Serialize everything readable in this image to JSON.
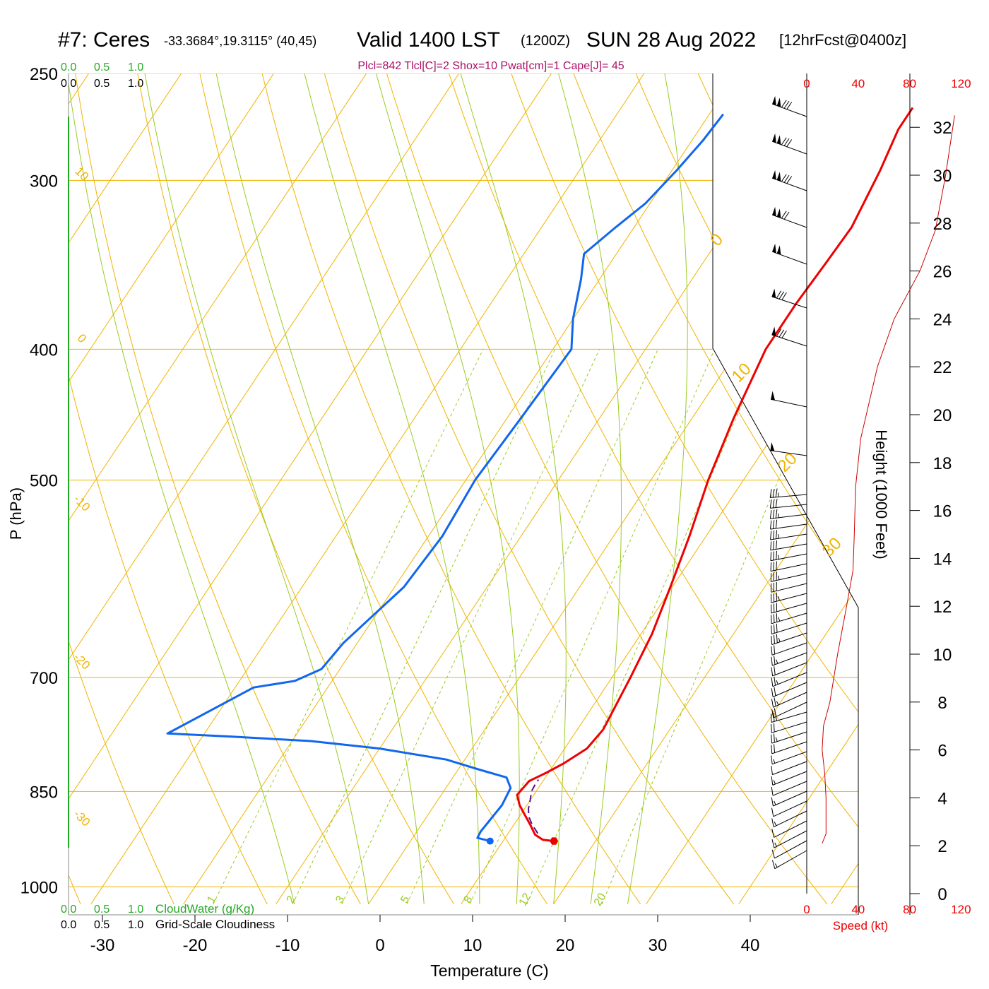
{
  "header": {
    "station": "#7: Ceres",
    "coords": "-33.3684°,19.3115° (40,45)",
    "valid": "Valid 1400 LST",
    "zulu": "(1200Z)",
    "date": "SUN 28 Aug 2022",
    "fcst": "[12hrFcst@0400z]",
    "indices": "Plcl=842 Tlcl[C]=2 Shox=10 Pwat[cm]=1 Cape[J]= 45"
  },
  "labels": {
    "cloud_top_scale": [
      "0.0",
      "0.5",
      "1.0"
    ],
    "cloud_bottom_label": "CloudWater (g/Kg)",
    "cloudiness_label": "Grid-Scale Cloudiness",
    "speed_label": "Speed (kt)",
    "height_label": "Height (1000 Feet)",
    "speed_ticks": [
      "0",
      "40",
      "80",
      "120"
    ]
  },
  "colors": {
    "temperature": "#ee0000",
    "dewpoint": "#1166ee",
    "parcel": "#551188",
    "isotherm": "#f0b400",
    "moist_adiabat": "#99cc22",
    "wind_speed": "#cc0000",
    "cloud_scale": "#22aa22"
  },
  "chart_data": {
    "type": "line",
    "title": "#7: Ceres Valid 1400 LST (1200Z) SUN 28 Aug 2022 [12hrFcst@0400z]",
    "xlabel": "Temperature (C)",
    "ylabel": "P (hPa)",
    "y_scale": "log",
    "xlim": [
      -34,
      46
    ],
    "ylim": [
      1030,
      250
    ],
    "x_ticks": [
      -30,
      -20,
      -10,
      0,
      10,
      20,
      30,
      40
    ],
    "y_ticks": [
      250,
      300,
      400,
      500,
      700,
      850,
      1000
    ],
    "isotherm_labels": [
      -10,
      0,
      10,
      20,
      30
    ],
    "adiabat_labels": [
      "10",
      "0",
      "-10",
      "-20",
      "-30"
    ],
    "mixing_ratio_labels": [
      "1",
      "2",
      "3",
      "5",
      "8",
      "12",
      "20"
    ],
    "series": [
      {
        "name": "Temperature",
        "points": [
          [
            15.5,
            925
          ],
          [
            14.2,
            923
          ],
          [
            13.0,
            915
          ],
          [
            11.8,
            900
          ],
          [
            10.5,
            885
          ],
          [
            9.2,
            870
          ],
          [
            8.2,
            855
          ],
          [
            8.5,
            835
          ],
          [
            9.8,
            823
          ],
          [
            11.0,
            810
          ],
          [
            12.4,
            790
          ],
          [
            12.8,
            765
          ],
          [
            12.5,
            740
          ],
          [
            12.0,
            700
          ],
          [
            11.2,
            650
          ],
          [
            9.8,
            600
          ],
          [
            8.2,
            550
          ],
          [
            6.2,
            500
          ],
          [
            4.5,
            450
          ],
          [
            3.0,
            400
          ],
          [
            3.0,
            370
          ],
          [
            3.3,
            345
          ],
          [
            3.5,
            325
          ],
          [
            2.5,
            295
          ],
          [
            1.5,
            275
          ],
          [
            1.5,
            265
          ]
        ]
      },
      {
        "name": "Dewpoint",
        "points": [
          [
            8.6,
            925
          ],
          [
            7.0,
            920
          ],
          [
            6.9,
            910
          ],
          [
            7.3,
            870
          ],
          [
            7.0,
            845
          ],
          [
            5.8,
            830
          ],
          [
            2.0,
            818
          ],
          [
            -2.0,
            805
          ],
          [
            -10.0,
            790
          ],
          [
            -18.0,
            780
          ],
          [
            -27.0,
            774
          ],
          [
            -34.0,
            770
          ],
          [
            -28.0,
            712
          ],
          [
            -24.0,
            704
          ],
          [
            -22.0,
            690
          ],
          [
            -21.5,
            660
          ],
          [
            -20.5,
            635
          ],
          [
            -19.0,
            600
          ],
          [
            -18.5,
            550
          ],
          [
            -19.0,
            500
          ],
          [
            -18.5,
            450
          ],
          [
            -18.0,
            400
          ],
          [
            -20.0,
            380
          ],
          [
            -22.0,
            355
          ],
          [
            -23.5,
            340
          ],
          [
            -22.0,
            325
          ],
          [
            -20.5,
            312
          ],
          [
            -19.5,
            295
          ],
          [
            -18.8,
            280
          ],
          [
            -18.5,
            268
          ]
        ]
      },
      {
        "name": "Parcel",
        "points": [
          [
            13.2,
            913
          ],
          [
            12.0,
            900
          ],
          [
            11.0,
            887
          ],
          [
            10.4,
            875
          ],
          [
            10.0,
            863
          ],
          [
            9.5,
            850
          ],
          [
            9.4,
            840
          ],
          [
            9.4,
            833
          ]
        ]
      }
    ],
    "wind_speed_profile": {
      "xlabel": "Speed (kt)",
      "ylabel": "Height (1000 Feet)",
      "xlim": [
        0,
        120
      ],
      "height_ticks": [
        0,
        2,
        4,
        6,
        8,
        10,
        12,
        14,
        16,
        18,
        20,
        22,
        24,
        26,
        28,
        30,
        32
      ],
      "points": [
        [
          12,
          2.1
        ],
        [
          15,
          2.5
        ],
        [
          15,
          4
        ],
        [
          14,
          5
        ],
        [
          12,
          6
        ],
        [
          13,
          7
        ],
        [
          18,
          8
        ],
        [
          24,
          10
        ],
        [
          31,
          12
        ],
        [
          36,
          13.5
        ],
        [
          37,
          15
        ],
        [
          38,
          17
        ],
        [
          42,
          19
        ],
        [
          55,
          22
        ],
        [
          68,
          24
        ],
        [
          88,
          26
        ],
        [
          100,
          27.7
        ],
        [
          108,
          30
        ],
        [
          115,
          32.5
        ]
      ]
    }
  }
}
